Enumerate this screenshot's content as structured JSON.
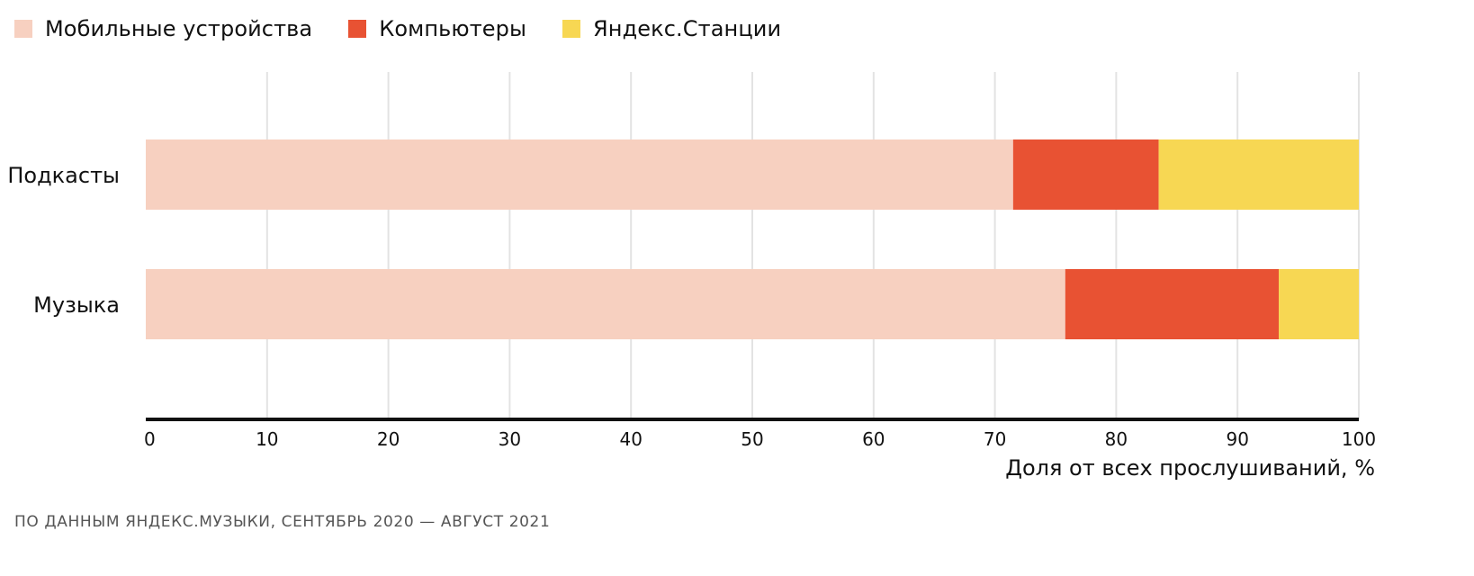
{
  "source_note": "ПО ДАННЫМ ЯНДЕКС.МУЗЫКИ, СЕНТЯБРЬ 2020 — АВГУСТ 2021",
  "chart_data": {
    "type": "bar",
    "orientation": "horizontal",
    "stacked": true,
    "categories": [
      "Подкасты",
      "Музыка"
    ],
    "series": [
      {
        "name": "Мобильные устройства",
        "color": "#F7D0C0",
        "values": [
          71.5,
          75.8
        ]
      },
      {
        "name": "Компьютеры",
        "color": "#E85233",
        "values": [
          12.0,
          17.6
        ]
      },
      {
        "name": "Яндекс.Станции",
        "color": "#F7D753",
        "values": [
          16.5,
          6.6
        ]
      }
    ],
    "xlabel": "Доля от всех прослушиваний, %",
    "xlim": [
      0,
      100
    ],
    "xticks": [
      0,
      10,
      20,
      30,
      40,
      50,
      60,
      70,
      80,
      90,
      100
    ],
    "grid": "vertical",
    "legend": "top-left"
  }
}
